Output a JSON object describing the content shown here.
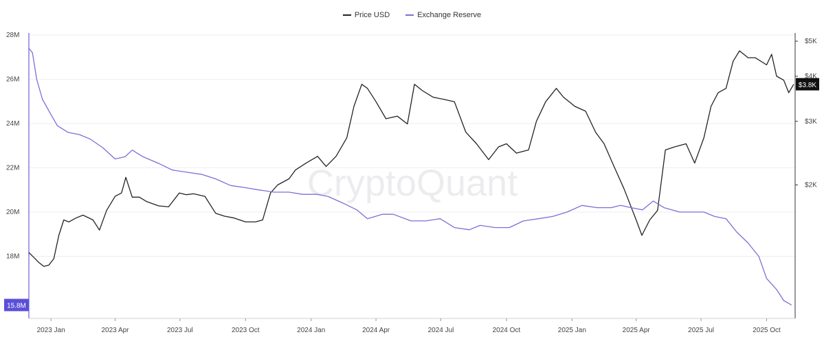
{
  "legend": {
    "price_label": "Price USD",
    "reserve_label": "Exchange Reserve"
  },
  "watermark": "CryptoQuant",
  "colors": {
    "price": "#222222",
    "reserve": "#7b6fd6",
    "reserve_badge": "#5b4fd8",
    "price_badge": "#111111"
  },
  "chart_data": {
    "type": "line",
    "title": "",
    "x_ticks": [
      "2023 Jan",
      "2023 Apr",
      "2023 Jul",
      "2023 Oct",
      "2024 Jan",
      "2024 Apr",
      "2024 Jul",
      "2024 Oct",
      "2025 Jan",
      "2025 Apr",
      "2025 Jul",
      "2025 Oct"
    ],
    "x_range": [
      "2022-12-01",
      "2025-11-10"
    ],
    "y_left": {
      "label": "Exchange Reserve",
      "ticks": [
        "28M",
        "26M",
        "24M",
        "22M",
        "20M",
        "18M"
      ],
      "range": [
        15.2,
        28.0
      ],
      "unit": "M"
    },
    "y_right": {
      "label": "Price USD",
      "ticks": [
        "$5K",
        "$4K",
        "$3K",
        "$2K"
      ],
      "scale": "log",
      "range": [
        1000,
        5000
      ]
    },
    "current_reserve_label": "15.8M",
    "current_price_label": "$3.8K",
    "series": [
      {
        "name": "Price USD",
        "axis": "right",
        "x": [
          "2022-12-01",
          "2022-12-08",
          "2022-12-15",
          "2022-12-22",
          "2022-12-29",
          "2023-01-05",
          "2023-01-12",
          "2023-01-19",
          "2023-01-26",
          "2023-02-05",
          "2023-02-15",
          "2023-03-01",
          "2023-03-10",
          "2023-03-20",
          "2023-04-01",
          "2023-04-10",
          "2023-04-16",
          "2023-04-25",
          "2023-05-05",
          "2023-05-15",
          "2023-06-01",
          "2023-06-15",
          "2023-06-30",
          "2023-07-10",
          "2023-07-20",
          "2023-08-05",
          "2023-08-20",
          "2023-09-01",
          "2023-09-15",
          "2023-10-01",
          "2023-10-15",
          "2023-10-25",
          "2023-11-05",
          "2023-11-15",
          "2023-12-01",
          "2023-12-10",
          "2023-12-25",
          "2024-01-10",
          "2024-01-22",
          "2024-02-05",
          "2024-02-20",
          "2024-03-01",
          "2024-03-12",
          "2024-03-20",
          "2024-04-01",
          "2024-04-15",
          "2024-05-01",
          "2024-05-15",
          "2024-05-25",
          "2024-06-05",
          "2024-06-20",
          "2024-07-05",
          "2024-07-20",
          "2024-08-05",
          "2024-08-20",
          "2024-09-06",
          "2024-09-20",
          "2024-10-01",
          "2024-10-15",
          "2024-11-01",
          "2024-11-12",
          "2024-11-25",
          "2024-12-10",
          "2024-12-20",
          "2025-01-05",
          "2025-01-20",
          "2025-02-03",
          "2025-02-15",
          "2025-03-01",
          "2025-03-15",
          "2025-04-01",
          "2025-04-09",
          "2025-04-20",
          "2025-05-01",
          "2025-05-12",
          "2025-05-25",
          "2025-06-10",
          "2025-06-22",
          "2025-07-05",
          "2025-07-15",
          "2025-07-25",
          "2025-08-05",
          "2025-08-15",
          "2025-08-24",
          "2025-09-05",
          "2025-09-15",
          "2025-10-01",
          "2025-10-08",
          "2025-10-15",
          "2025-10-25",
          "2025-11-01",
          "2025-11-08"
        ],
        "values": [
          1300,
          1260,
          1220,
          1190,
          1200,
          1250,
          1450,
          1600,
          1580,
          1620,
          1650,
          1600,
          1500,
          1700,
          1860,
          1900,
          2100,
          1850,
          1850,
          1800,
          1750,
          1740,
          1900,
          1880,
          1890,
          1860,
          1670,
          1640,
          1620,
          1580,
          1580,
          1600,
          1900,
          2000,
          2080,
          2200,
          2300,
          2400,
          2250,
          2400,
          2700,
          3300,
          3800,
          3700,
          3400,
          3050,
          3100,
          2950,
          3800,
          3650,
          3500,
          3450,
          3400,
          2800,
          2600,
          2350,
          2550,
          2600,
          2450,
          2500,
          3000,
          3400,
          3700,
          3500,
          3300,
          3200,
          2800,
          2600,
          2250,
          1950,
          1600,
          1450,
          1600,
          1700,
          2500,
          2550,
          2600,
          2300,
          2700,
          3300,
          3600,
          3700,
          4400,
          4700,
          4500,
          4500,
          4300,
          4600,
          4000,
          3900,
          3600,
          3800
        ]
      },
      {
        "name": "Exchange Reserve",
        "axis": "left",
        "x": [
          "2022-12-01",
          "2022-12-06",
          "2022-12-12",
          "2022-12-20",
          "2023-01-01",
          "2023-01-10",
          "2023-01-25",
          "2023-02-10",
          "2023-02-25",
          "2023-03-15",
          "2023-04-01",
          "2023-04-15",
          "2023-04-25",
          "2023-05-10",
          "2023-06-01",
          "2023-06-20",
          "2023-07-10",
          "2023-08-01",
          "2023-08-20",
          "2023-09-10",
          "2023-10-01",
          "2023-10-20",
          "2023-11-10",
          "2023-12-01",
          "2023-12-20",
          "2024-01-10",
          "2024-01-25",
          "2024-02-15",
          "2024-03-05",
          "2024-03-20",
          "2024-04-10",
          "2024-04-25",
          "2024-05-20",
          "2024-06-10",
          "2024-06-30",
          "2024-07-20",
          "2024-08-10",
          "2024-08-25",
          "2024-09-15",
          "2024-10-05",
          "2024-10-25",
          "2024-11-15",
          "2024-12-05",
          "2024-12-25",
          "2025-01-15",
          "2025-02-05",
          "2025-02-25",
          "2025-03-10",
          "2025-03-25",
          "2025-04-10",
          "2025-04-25",
          "2025-05-10",
          "2025-06-01",
          "2025-06-20",
          "2025-07-05",
          "2025-07-20",
          "2025-08-05",
          "2025-08-20",
          "2025-09-05",
          "2025-09-20",
          "2025-10-01",
          "2025-10-15",
          "2025-10-25",
          "2025-11-05"
        ],
        "values": [
          27.4,
          27.2,
          26.0,
          25.1,
          24.4,
          23.9,
          23.6,
          23.5,
          23.3,
          22.9,
          22.4,
          22.5,
          22.8,
          22.5,
          22.2,
          21.9,
          21.8,
          21.7,
          21.5,
          21.2,
          21.1,
          21.0,
          20.9,
          20.9,
          20.8,
          20.8,
          20.7,
          20.4,
          20.1,
          19.7,
          19.9,
          19.9,
          19.6,
          19.6,
          19.7,
          19.3,
          19.2,
          19.4,
          19.3,
          19.3,
          19.6,
          19.7,
          19.8,
          20.0,
          20.3,
          20.2,
          20.2,
          20.3,
          20.2,
          20.1,
          20.5,
          20.2,
          20.0,
          20.0,
          20.0,
          19.8,
          19.7,
          19.1,
          18.6,
          18.0,
          17.0,
          16.5,
          16.0,
          15.8
        ]
      }
    ]
  }
}
